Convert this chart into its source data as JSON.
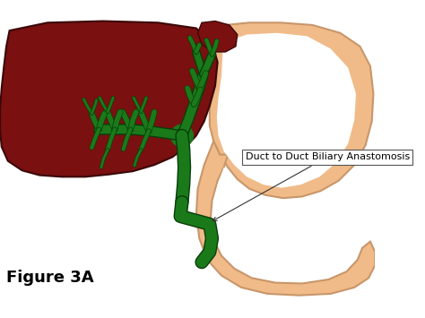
{
  "background_color": "#ffffff",
  "liver_color": "#7a1010",
  "liver_outline": "#3a0808",
  "bile_duct_color": "#1a7a1a",
  "bile_duct_dark": "#0a3d0a",
  "stomach_color": "#f0bb88",
  "stomach_outline": "#c8966b",
  "spleen_color": "#7a1010",
  "label_text": "Duct to Duct Biliary Anastomosis",
  "figure_label": "Figure 3A",
  "figure_label_fontsize": 13,
  "label_fontsize": 8,
  "fig_width": 4.74,
  "fig_height": 3.55
}
